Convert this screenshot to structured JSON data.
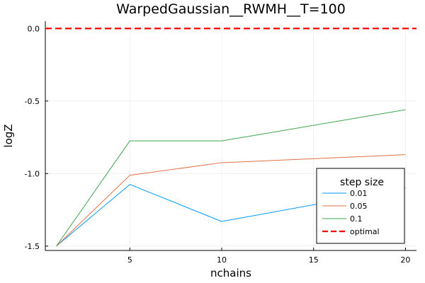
{
  "chart_data": {
    "type": "line",
    "title": "WarpedGaussian__RWMH__T=100",
    "xlabel": "nchains",
    "ylabel": "logZ",
    "x": [
      1,
      5,
      10,
      20
    ],
    "xlim": [
      0.4,
      20.6
    ],
    "ylim": [
      -1.53,
      0.05
    ],
    "xticks": [
      5,
      10,
      15,
      20
    ],
    "yticks": [
      0.0,
      -0.5,
      -1.0,
      -1.5
    ],
    "xtick_labels": [
      "5",
      "10",
      "15",
      "20"
    ],
    "ytick_labels": [
      "0.0",
      "-0.5",
      "-1.0",
      "-1.5"
    ],
    "grid": true,
    "legend_title": "step size",
    "legend_position": "bottom-right",
    "series": [
      {
        "name": "0.01",
        "color": "#009AFA",
        "values": [
          -1.5,
          -1.075,
          -1.33,
          -1.1
        ]
      },
      {
        "name": "0.05",
        "color": "#E26F46",
        "values": [
          -1.5,
          -1.012,
          -0.925,
          -0.87
        ]
      },
      {
        "name": "0.1",
        "color": "#3EA44E",
        "values": [
          -1.5,
          -0.775,
          -0.775,
          -0.56
        ]
      }
    ],
    "reference_line": {
      "name": "optimal",
      "y": 0.0,
      "color": "#FF0000",
      "style": "dashed"
    }
  }
}
